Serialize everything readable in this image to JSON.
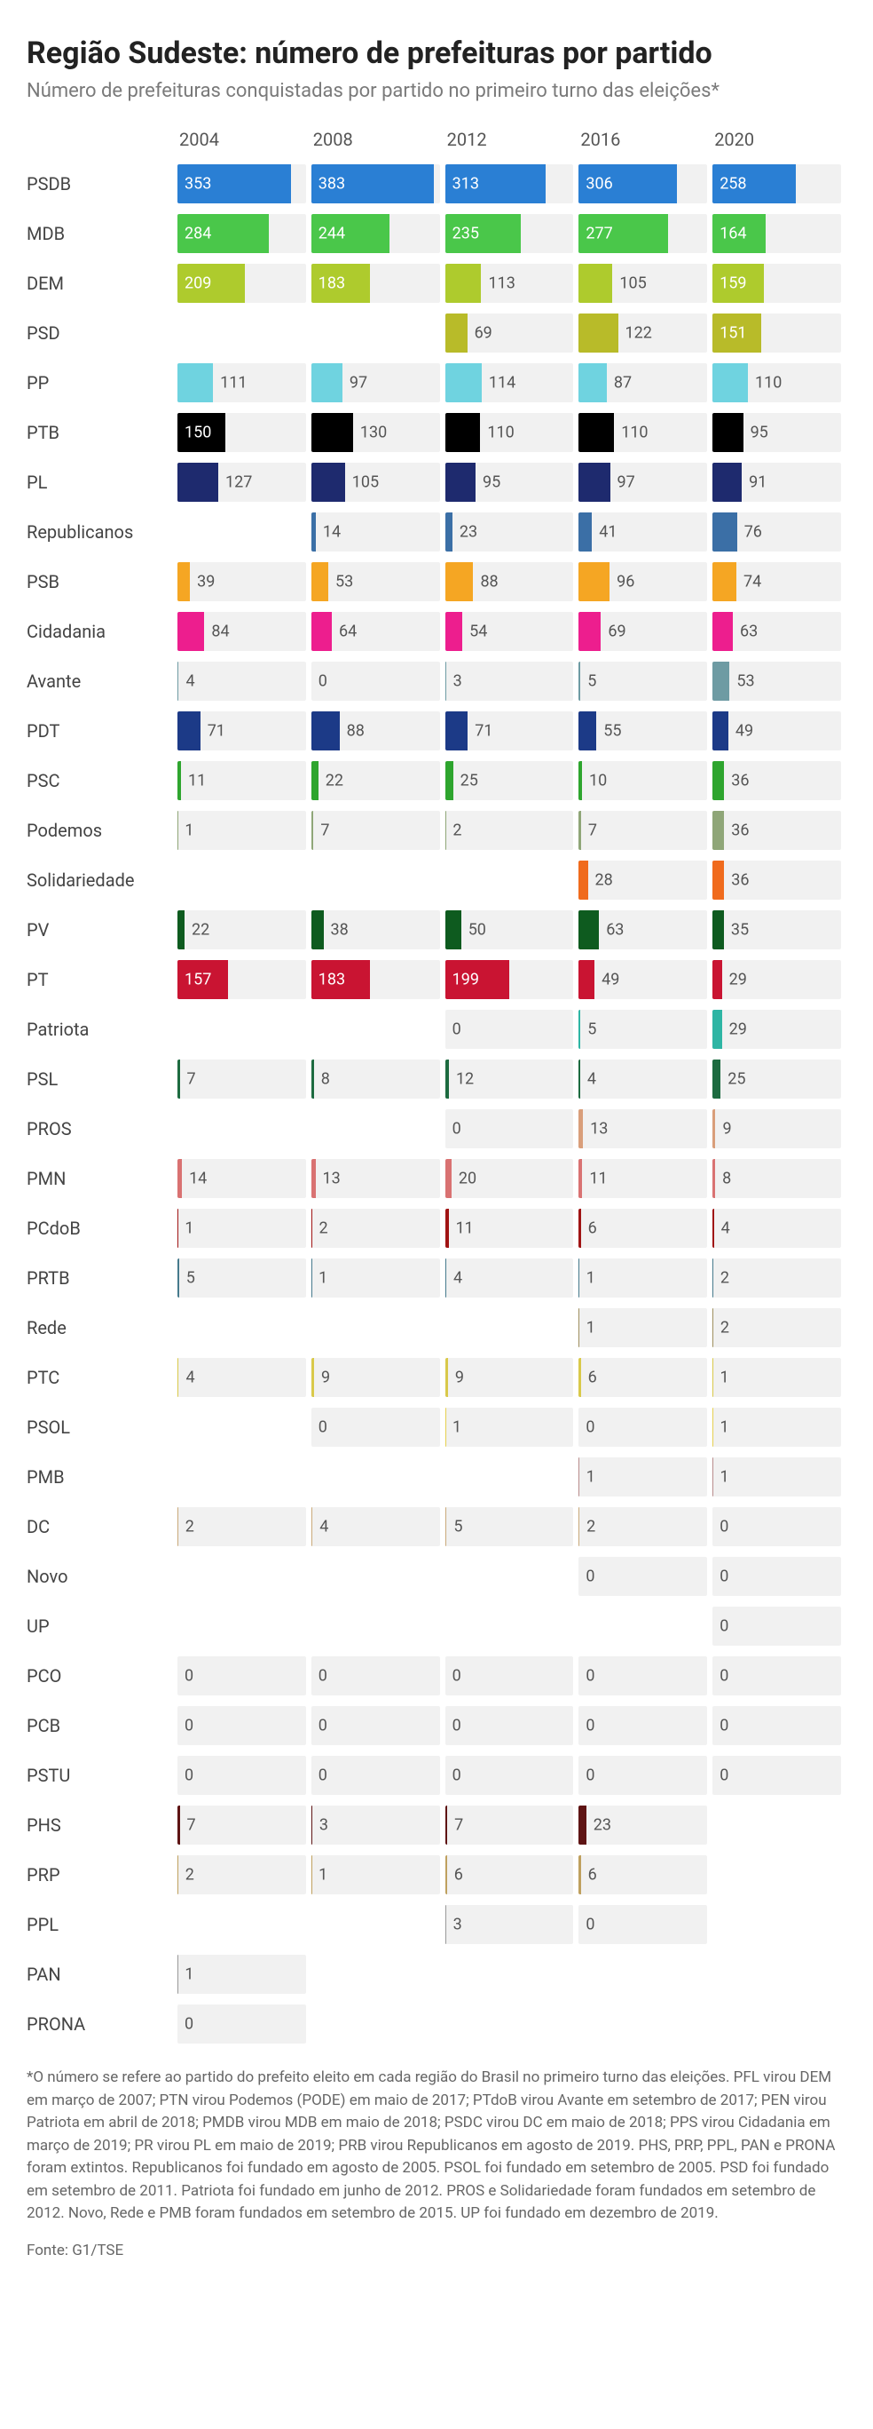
{
  "title": "Região Sudeste: número de prefeituras por partido",
  "subtitle": "Número de prefeituras conquistadas por partido no primeiro turno das eleições*",
  "years": [
    "2004",
    "2008",
    "2012",
    "2016",
    "2020"
  ],
  "max_value": 400,
  "inside_threshold": 140,
  "track_color": "#f1f1f1",
  "text_color_dark": "#555555",
  "text_color_light": "#ffffff",
  "title_fontsize": 34,
  "subtitle_fontsize": 22,
  "label_fontsize": 20,
  "value_fontsize": 18,
  "parties": [
    {
      "name": "PSDB",
      "color": "#2a7fd4",
      "values": [
        353,
        383,
        313,
        306,
        258
      ]
    },
    {
      "name": "MDB",
      "color": "#4ac74a",
      "values": [
        284,
        244,
        235,
        277,
        164
      ]
    },
    {
      "name": "DEM",
      "color": "#aecb2d",
      "values": [
        209,
        183,
        113,
        105,
        159
      ]
    },
    {
      "name": "PSD",
      "color": "#b8bb29",
      "values": [
        null,
        null,
        69,
        122,
        151
      ]
    },
    {
      "name": "PP",
      "color": "#6fd3e0",
      "values": [
        111,
        97,
        114,
        87,
        110
      ]
    },
    {
      "name": "PTB",
      "color": "#000000",
      "values": [
        150,
        130,
        110,
        110,
        95
      ]
    },
    {
      "name": "PL",
      "color": "#1e2a6e",
      "values": [
        127,
        105,
        95,
        97,
        91
      ]
    },
    {
      "name": "Republicanos",
      "color": "#3b6fa6",
      "values": [
        null,
        14,
        23,
        41,
        76
      ]
    },
    {
      "name": "PSB",
      "color": "#f5a623",
      "values": [
        39,
        53,
        88,
        96,
        74
      ]
    },
    {
      "name": "Cidadania",
      "color": "#ed1e8e",
      "values": [
        84,
        64,
        54,
        69,
        63
      ]
    },
    {
      "name": "Avante",
      "color": "#6e9ba3",
      "values": [
        4,
        0,
        3,
        5,
        53
      ]
    },
    {
      "name": "PDT",
      "color": "#1c3a87",
      "values": [
        71,
        88,
        71,
        55,
        49
      ]
    },
    {
      "name": "PSC",
      "color": "#2ea52e",
      "values": [
        11,
        22,
        25,
        10,
        36
      ]
    },
    {
      "name": "Podemos",
      "color": "#8fa678",
      "values": [
        1,
        7,
        2,
        7,
        36
      ]
    },
    {
      "name": "Solidariedade",
      "color": "#f06b1d",
      "values": [
        null,
        null,
        null,
        28,
        36
      ]
    },
    {
      "name": "PV",
      "color": "#0e5b1f",
      "values": [
        22,
        38,
        50,
        63,
        35
      ]
    },
    {
      "name": "PT",
      "color": "#c91432",
      "values": [
        157,
        183,
        199,
        49,
        29
      ]
    },
    {
      "name": "Patriota",
      "color": "#2eb5a4",
      "values": [
        null,
        null,
        0,
        5,
        29
      ]
    },
    {
      "name": "PSL",
      "color": "#1d6b40",
      "values": [
        7,
        8,
        12,
        4,
        25
      ]
    },
    {
      "name": "PROS",
      "color": "#d99e7a",
      "values": [
        null,
        null,
        0,
        13,
        9
      ]
    },
    {
      "name": "PMN",
      "color": "#d97272",
      "values": [
        14,
        13,
        20,
        11,
        8
      ]
    },
    {
      "name": "PCdoB",
      "color": "#a01414",
      "values": [
        1,
        2,
        11,
        6,
        4
      ]
    },
    {
      "name": "PRTB",
      "color": "#467a8c",
      "values": [
        5,
        1,
        4,
        1,
        2
      ]
    },
    {
      "name": "Rede",
      "color": "#9e8f5e",
      "values": [
        null,
        null,
        null,
        1,
        2
      ]
    },
    {
      "name": "PTC",
      "color": "#d9c94a",
      "values": [
        4,
        9,
        9,
        6,
        1
      ]
    },
    {
      "name": "PSOL",
      "color": "#e6d050",
      "values": [
        null,
        0,
        1,
        0,
        1
      ]
    },
    {
      "name": "PMB",
      "color": "#b88c8c",
      "values": [
        null,
        null,
        null,
        1,
        1
      ]
    },
    {
      "name": "DC",
      "color": "#c9a97a",
      "values": [
        2,
        4,
        5,
        2,
        0
      ]
    },
    {
      "name": "Novo",
      "color": "#999999",
      "values": [
        null,
        null,
        null,
        0,
        0
      ]
    },
    {
      "name": "UP",
      "color": "#999999",
      "values": [
        null,
        null,
        null,
        null,
        0
      ]
    },
    {
      "name": "PCO",
      "color": "#999999",
      "values": [
        0,
        0,
        0,
        0,
        0
      ]
    },
    {
      "name": "PCB",
      "color": "#999999",
      "values": [
        0,
        0,
        0,
        0,
        0
      ]
    },
    {
      "name": "PSTU",
      "color": "#999999",
      "values": [
        0,
        0,
        0,
        0,
        0
      ]
    },
    {
      "name": "PHS",
      "color": "#5e1414",
      "values": [
        7,
        3,
        7,
        23,
        null
      ]
    },
    {
      "name": "PRP",
      "color": "#bfa05e",
      "values": [
        2,
        1,
        6,
        6,
        null
      ]
    },
    {
      "name": "PPL",
      "color": "#999999",
      "values": [
        null,
        null,
        3,
        0,
        null
      ]
    },
    {
      "name": "PAN",
      "color": "#999999",
      "values": [
        1,
        null,
        null,
        null,
        null
      ]
    },
    {
      "name": "PRONA",
      "color": "#999999",
      "values": [
        0,
        null,
        null,
        null,
        null
      ]
    }
  ],
  "footnote": "*O número se refere ao partido do prefeito eleito em cada região do Brasil no primeiro turno das eleições. PFL virou DEM em março de 2007; PTN virou Podemos (PODE) em maio de 2017; PTdoB virou Avante em setembro de 2017; PEN virou Patriota em abril de 2018; PMDB virou MDB em maio de 2018; PSDC virou DC em maio de 2018; PPS virou Cidadania em março de 2019; PR virou PL em maio de 2019; PRB virou Republicanos em agosto de 2019. PHS, PRP, PPL, PAN e PRONA foram extintos. Republicanos foi fundado em agosto de 2005. PSOL foi fundado em setembro de 2005. PSD foi fundado em setembro de 2011. Patriota foi fundado em junho de 2012. PROS e Solidariedade foram fundados em setembro de 2012. Novo, Rede e PMB foram fundados em setembro de 2015. UP foi fundado em dezembro de 2019.",
  "source": "Fonte: G1/TSE"
}
